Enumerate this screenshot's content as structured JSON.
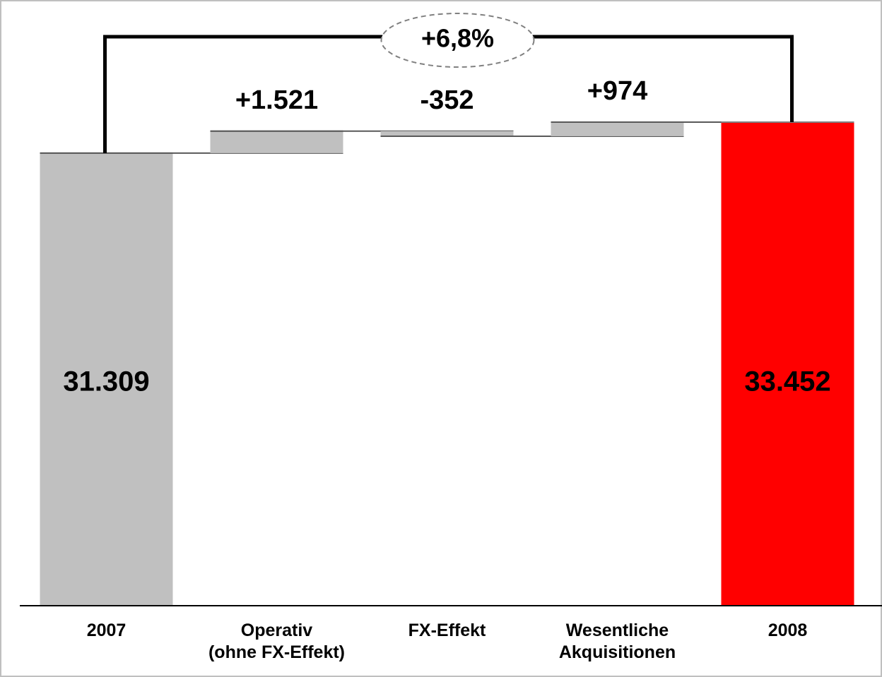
{
  "chart_data": {
    "type": "waterfall",
    "categories": [
      "2007",
      "Operativ\n(ohne FX-Effekt)",
      "FX-Effekt",
      "Wesentliche\nAkquisitionen",
      "2008"
    ],
    "values": [
      31309,
      1521,
      -352,
      974,
      33452
    ],
    "value_labels": [
      "31.309",
      "+1.521",
      "-352",
      "+974",
      "33.452"
    ],
    "measures": [
      "absolute",
      "relative",
      "relative",
      "relative",
      "total"
    ],
    "colors": [
      "#c0c0c0",
      "#c0c0c0",
      "#c0c0c0",
      "#c0c0c0",
      "#ff0000"
    ],
    "annotation": "+6,8%"
  }
}
